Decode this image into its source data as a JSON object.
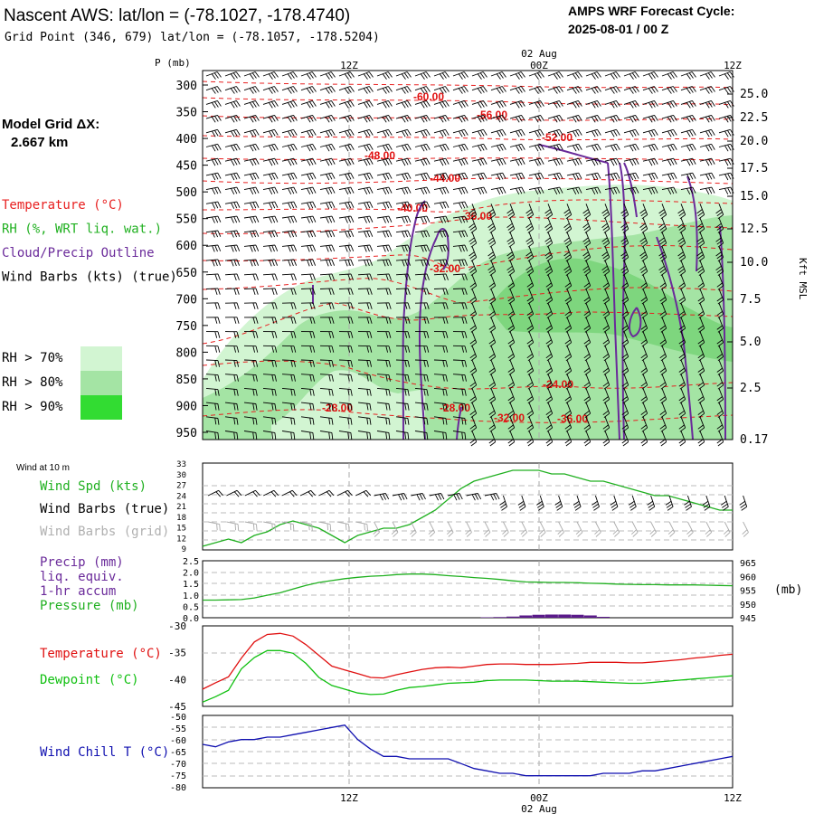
{
  "header": {
    "title": "Nascent AWS:  lat/lon = (-78.1027, -178.4740)",
    "grid_point": "Grid Point (346, 679) lat/lon = (-78.1057, -178.5204)",
    "forecast_label": "AMPS WRF Forecast Cycle:",
    "forecast_cycle": "2025-08-01 / 00  Z"
  },
  "left_panel": {
    "model_grid_label": "Model Grid ΔX:",
    "model_grid_value": "2.667 km",
    "legend": [
      {
        "text": "Temperature (°C)",
        "color": "#e82020"
      },
      {
        "text": "RH (%, WRT liq. wat.)",
        "color": "#20b020"
      },
      {
        "text": "Cloud/Precip Outline",
        "color": "#6a2a9a"
      },
      {
        "text": "Wind Barbs (kts) (true)",
        "color": "#000000"
      }
    ],
    "rh_legend": [
      {
        "text": "RH > 70%",
        "color": "#d2f5d2"
      },
      {
        "text": "RH > 80%",
        "color": "#a4e4a4"
      },
      {
        "text": "RH > 90%",
        "color": "#32dc32"
      }
    ]
  },
  "time_axis": {
    "ticks": [
      "12Z",
      "00Z",
      "12Z"
    ],
    "date_label": "02 Aug"
  },
  "chart_data": [
    {
      "type": "heatmap",
      "panel": "vertical-profile",
      "ylabel": "P (mb)",
      "y2label": "Kft MSL",
      "pressure_ticks": [
        "300",
        "350",
        "400",
        "450",
        "500",
        "550",
        "600",
        "650",
        "700",
        "750",
        "800",
        "850",
        "900",
        "950"
      ],
      "height_ticks": [
        "25.0",
        "22.5",
        "20.0",
        "17.5",
        "15.0",
        "12.5",
        "10.0",
        "7.5",
        "5.0",
        "2.5",
        "0.17"
      ],
      "temperature_labels": [
        "-60.00",
        "-56.00",
        "-52.00",
        "-48.00",
        "-44.00",
        "-40.00",
        "-36.00",
        "-32.00",
        "-24.00",
        "-28.00",
        "-28.00",
        "-32.00",
        "-36.00"
      ],
      "grid": true
    },
    {
      "type": "line",
      "panel": "wind-10m",
      "panel_title": "Wind at 10 m",
      "series_labels": [
        {
          "text": "Wind Spd (kts)",
          "color": "#20b020"
        },
        {
          "text": "Wind Barbs (true)",
          "color": "#000000"
        },
        {
          "text": "Wind Barbs (grid)",
          "color": "#b0b0b0"
        }
      ],
      "yticks": [
        "33",
        "30",
        "27",
        "24",
        "21",
        "18",
        "15",
        "12",
        "9"
      ],
      "ylim": [
        9,
        33
      ],
      "wind_speed": [
        10,
        11,
        12,
        11,
        13,
        14,
        16,
        17,
        16,
        15,
        13,
        11,
        13,
        14,
        15,
        15,
        16,
        18,
        20,
        23,
        26,
        28,
        29,
        30,
        31,
        31,
        31,
        30,
        30,
        29,
        28,
        28,
        27,
        26,
        25,
        24,
        24,
        23,
        22,
        21,
        20,
        20
      ],
      "grid": true
    },
    {
      "type": "line",
      "panel": "precip-pressure",
      "series_labels": [
        {
          "text": "Precip (mm)",
          "color": "#6a2a9a"
        },
        {
          "text": "liq. equiv.",
          "color": "#6a2a9a"
        },
        {
          "text": "1-hr accum",
          "color": "#6a2a9a"
        },
        {
          "text": "Pressure (mb)",
          "color": "#20b020"
        }
      ],
      "yticks_left": [
        "2.5",
        "2.0",
        "1.5",
        "1.0",
        "0.5",
        "0.0"
      ],
      "yticks_right": [
        "965",
        "960",
        "955",
        "950",
        "945"
      ],
      "y2label": "(mb)",
      "ylim_left": [
        0,
        2.5
      ],
      "ylim_right": [
        945,
        966
      ],
      "pressure": [
        951.5,
        951.5,
        951.6,
        951.7,
        952.3,
        953.3,
        954.2,
        955.6,
        956.9,
        958.0,
        958.7,
        959.4,
        959.9,
        960.3,
        960.5,
        960.9,
        961.1,
        961.1,
        960.9,
        960.5,
        960.2,
        959.8,
        959.5,
        959.1,
        958.6,
        958.2,
        958.1,
        958.0,
        958.0,
        957.9,
        957.7,
        957.6,
        957.4,
        957.3,
        957.2,
        957.2,
        957.1,
        957.1,
        957.1,
        957.0,
        956.9,
        956.8
      ],
      "precip": [
        0,
        0,
        0,
        0,
        0,
        0,
        0,
        0,
        0,
        0,
        0,
        0,
        0,
        0,
        0,
        0,
        0,
        0,
        0,
        0,
        0,
        0,
        0.02,
        0.03,
        0.05,
        0.1,
        0.13,
        0.14,
        0.14,
        0.13,
        0.1,
        0.04,
        0,
        0,
        0,
        0,
        0,
        0,
        0,
        0,
        0,
        0
      ],
      "grid": true
    },
    {
      "type": "line",
      "panel": "temperature-dewpoint",
      "series": [
        {
          "name": "Temperature (°C)",
          "color": "#e01010",
          "values": [
            -41.8,
            -40.6,
            -39.5,
            -36.0,
            -33.0,
            -31.6,
            -31.4,
            -31.9,
            -33.5,
            -35.5,
            -37.5,
            -38.2,
            -38.9,
            -39.6,
            -39.7,
            -39.1,
            -38.6,
            -38.1,
            -37.8,
            -37.7,
            -37.8,
            -37.5,
            -37.2,
            -37.1,
            -37.1,
            -37.2,
            -37.2,
            -37.2,
            -37.1,
            -37.0,
            -36.8,
            -36.8,
            -36.8,
            -36.9,
            -36.9,
            -36.7,
            -36.5,
            -36.3,
            -36.0,
            -35.8,
            -35.5,
            -35.3
          ]
        },
        {
          "name": "Dewpoint (°C)",
          "color": "#10c010",
          "values": [
            -44.2,
            -43.2,
            -42.0,
            -38.0,
            -35.9,
            -34.6,
            -34.6,
            -35.1,
            -37.0,
            -39.6,
            -41.1,
            -41.8,
            -42.5,
            -42.8,
            -42.7,
            -42.0,
            -41.5,
            -41.3,
            -41.0,
            -40.7,
            -40.6,
            -40.5,
            -40.2,
            -40.1,
            -40.1,
            -40.1,
            -40.2,
            -40.3,
            -40.3,
            -40.3,
            -40.4,
            -40.5,
            -40.6,
            -40.7,
            -40.7,
            -40.5,
            -40.3,
            -40.1,
            -39.9,
            -39.7,
            -39.5,
            -39.3
          ]
        }
      ],
      "yticks": [
        "-30",
        "-35",
        "-40",
        "-45"
      ],
      "ylim": [
        -45,
        -30
      ],
      "grid": true
    },
    {
      "type": "line",
      "panel": "wind-chill",
      "series": [
        {
          "name": "Wind Chill T (°C)",
          "color": "#1010b0",
          "values": [
            -62,
            -63,
            -61,
            -60,
            -60,
            -59,
            -59,
            -58,
            -57,
            -56,
            -55,
            -54,
            -60,
            -64,
            -67,
            -67,
            -68,
            -68,
            -68,
            -68,
            -70,
            -72,
            -73,
            -74,
            -74,
            -75,
            -75,
            -75,
            -75,
            -75,
            -75,
            -74,
            -74,
            -74,
            -73,
            -73,
            -72,
            -71,
            -70,
            -69,
            -68,
            -67
          ]
        }
      ],
      "yticks": [
        "-50",
        "-55",
        "-60",
        "-65",
        "-70",
        "-75",
        "-80"
      ],
      "ylim": [
        -80,
        -50
      ],
      "grid": true
    }
  ]
}
